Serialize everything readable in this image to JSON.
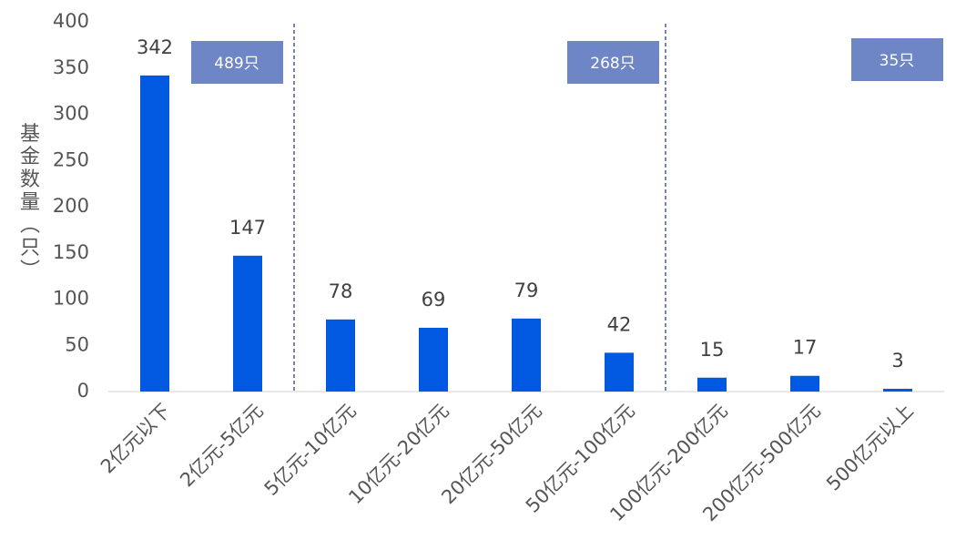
{
  "chart_data": {
    "type": "bar",
    "y_label": "基金数量（只）",
    "categories": [
      "2亿元以下",
      "2亿元-5亿元",
      "5亿元-10亿元",
      "10亿元-20亿元",
      "20亿元-50亿元",
      "50亿元-100亿元",
      "100亿元-200亿元",
      "200亿元-500亿元",
      "500亿元以上"
    ],
    "values": [
      342,
      147,
      78,
      69,
      79,
      42,
      15,
      17,
      3
    ],
    "color": "#0059e0",
    "ylim": [
      0,
      400
    ],
    "yticks": [
      0,
      50,
      100,
      150,
      200,
      250,
      300,
      350,
      400
    ],
    "annotations": [
      "489只",
      "268只",
      "35只"
    ]
  }
}
